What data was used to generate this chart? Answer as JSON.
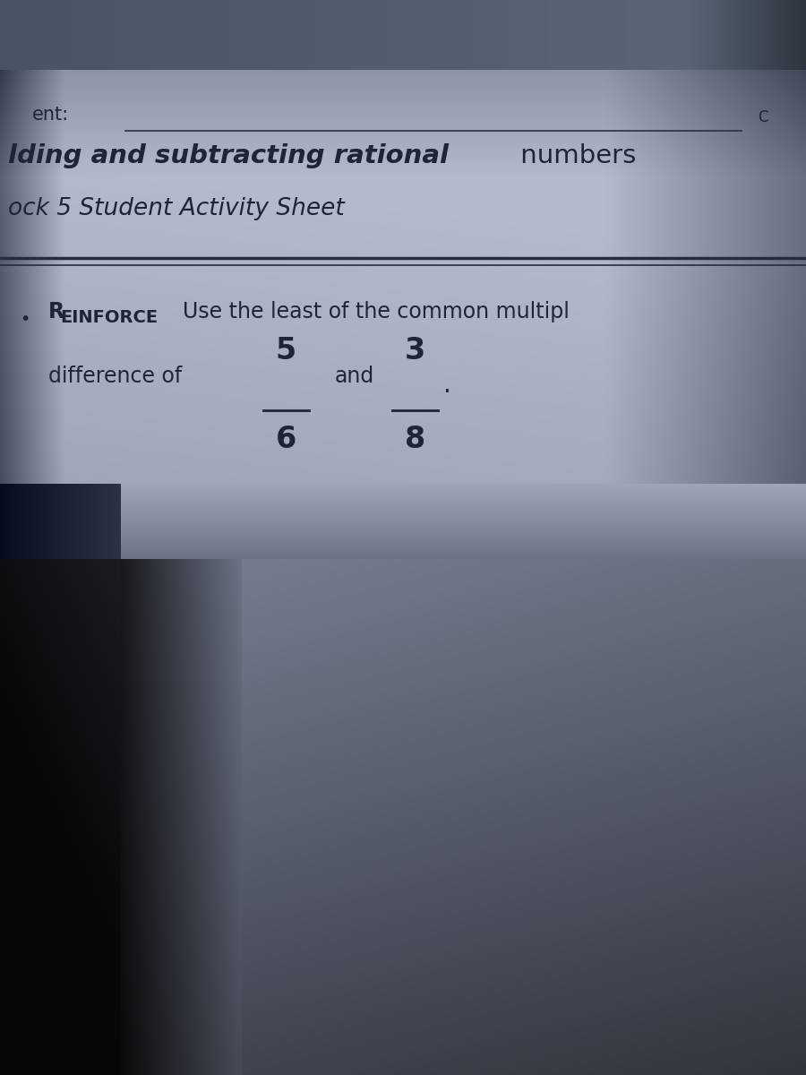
{
  "text_color": "#1e2535",
  "line1_text": "ent:",
  "underline_text": "___________________________",
  "title_bold": "lding and subtracting rational",
  "title_normal": " numbers",
  "subtitle_text": "ock 5 Student Activity Sheet",
  "reinforce_text": "REINFORCE  Use the least of the common multipl",
  "difference_text": "difference of",
  "frac1_num": "5",
  "frac1_den": "6",
  "frac2_num": "3",
  "frac2_den": "8",
  "and_text": "and",
  "period_text": "."
}
